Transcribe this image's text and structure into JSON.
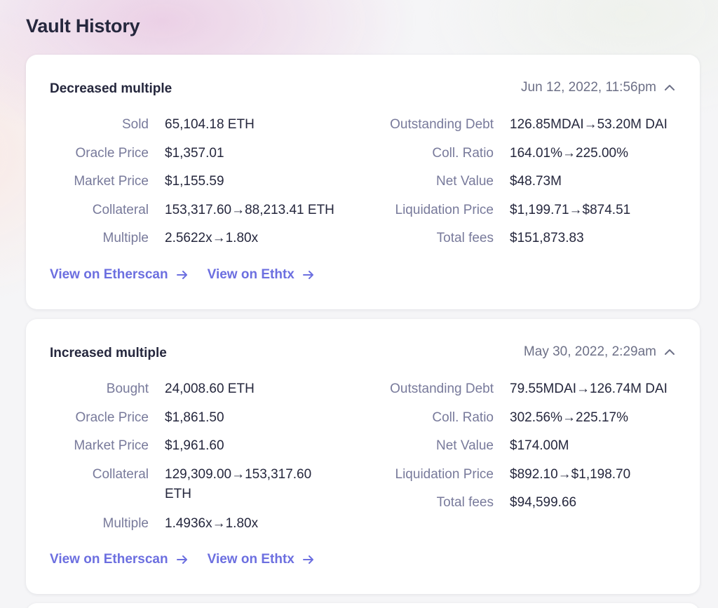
{
  "page": {
    "title": "Vault History"
  },
  "events": [
    {
      "title": "Decreased multiple",
      "date": "Jun 12, 2022, 11:56pm",
      "left": [
        {
          "label": "Sold",
          "value": "65,104.18 ETH"
        },
        {
          "label": "Oracle Price",
          "value": "$1,357.01"
        },
        {
          "label": "Market Price",
          "value": "$1,155.59"
        },
        {
          "label": "Collateral",
          "value": "153,317.60→88,213.41 ETH"
        },
        {
          "label": "Multiple",
          "value": "2.5622x→1.80x"
        }
      ],
      "right": [
        {
          "label": "Outstanding Debt",
          "value": "126.85MDAI→53.20M DAI"
        },
        {
          "label": "Coll. Ratio",
          "value": "164.01%→225.00%"
        },
        {
          "label": "Net Value",
          "value": "$48.73M"
        },
        {
          "label": "Liquidation Price",
          "value": "$1,199.71→$874.51"
        },
        {
          "label": "Total fees",
          "value": "$151,873.83"
        }
      ],
      "links": {
        "etherscan": "View on Etherscan",
        "ethtx": "View on Ethtx"
      }
    },
    {
      "title": "Increased multiple",
      "date": "May 30, 2022, 2:29am",
      "left": [
        {
          "label": "Bought",
          "value": "24,008.60 ETH"
        },
        {
          "label": "Oracle Price",
          "value": "$1,861.50"
        },
        {
          "label": "Market Price",
          "value": "$1,961.60"
        },
        {
          "label": "Collateral",
          "value": "129,309.00→153,317.60 ETH"
        },
        {
          "label": "Multiple",
          "value": "1.4936x→1.80x"
        }
      ],
      "right": [
        {
          "label": "Outstanding Debt",
          "value": "79.55MDAI→126.74M DAI"
        },
        {
          "label": "Coll. Ratio",
          "value": "302.56%→225.17%"
        },
        {
          "label": "Net Value",
          "value": "$174.00M"
        },
        {
          "label": "Liquidation Price",
          "value": "$892.10→$1,198.70"
        },
        {
          "label": "Total fees",
          "value": "$94,599.66"
        }
      ],
      "links": {
        "etherscan": "View on Etherscan",
        "ethtx": "View on Ethtx"
      }
    }
  ],
  "icons": {
    "expand": "chevron-up-icon",
    "link": "arrow-right-icon"
  },
  "colors": {
    "link": "#6c6fe0",
    "label": "#787a9b",
    "text": "#25273d",
    "date": "#6d7087"
  }
}
